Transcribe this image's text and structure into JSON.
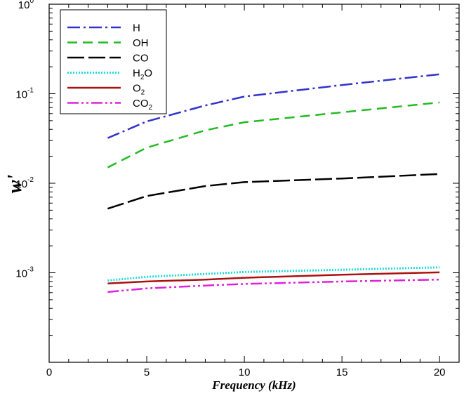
{
  "chart_data": {
    "type": "line",
    "title": "",
    "xlabel": "Frequency (kHz)",
    "ylabel": "w'",
    "xscale": "linear",
    "yscale": "log",
    "xlim": [
      0,
      21
    ],
    "ylim": [
      0.0001,
      1
    ],
    "xticks": [
      {
        "value": 0,
        "label": "0"
      },
      {
        "value": 5,
        "label": "5"
      },
      {
        "value": 10,
        "label": "10"
      },
      {
        "value": 15,
        "label": "15"
      },
      {
        "value": 20,
        "label": "20"
      }
    ],
    "yticks": [
      {
        "value": 1,
        "base": "10",
        "exp": "0"
      },
      {
        "value": 0.1,
        "base": "10",
        "exp": "-1"
      },
      {
        "value": 0.01,
        "base": "10",
        "exp": "-2"
      },
      {
        "value": 0.001,
        "base": "10",
        "exp": "-3"
      }
    ],
    "legend_position": "top-left",
    "series": [
      {
        "name": "H",
        "label_main": "H",
        "label_sub": "",
        "label_tail": "",
        "color": "#3333cc",
        "dash": "18,5,3,5",
        "x": [
          3,
          5,
          8,
          10,
          15,
          20
        ],
        "y": [
          0.032,
          0.049,
          0.074,
          0.093,
          0.125,
          0.165
        ]
      },
      {
        "name": "OH",
        "label_main": "OH",
        "label_sub": "",
        "label_tail": "",
        "color": "#22bb22",
        "dash": "14,8",
        "x": [
          3,
          5,
          8,
          10,
          15,
          20
        ],
        "y": [
          0.015,
          0.025,
          0.039,
          0.048,
          0.062,
          0.08
        ]
      },
      {
        "name": "CO",
        "label_main": "CO",
        "label_sub": "",
        "label_tail": "",
        "color": "#000000",
        "dash": "24,6",
        "x": [
          3,
          5,
          8,
          10,
          15,
          20
        ],
        "y": [
          0.0052,
          0.0072,
          0.0093,
          0.0103,
          0.0113,
          0.0127
        ]
      },
      {
        "name": "H2O",
        "label_main": "H",
        "label_sub": "2",
        "label_tail": "O",
        "color": "#22dddd",
        "dash": "2,2",
        "x": [
          3,
          5,
          8,
          10,
          15,
          20
        ],
        "y": [
          0.00082,
          0.0009,
          0.00097,
          0.00102,
          0.00108,
          0.00115
        ]
      },
      {
        "name": "O2",
        "label_main": "O",
        "label_sub": "2",
        "label_tail": "",
        "color": "#aa1111",
        "dash": "",
        "x": [
          3,
          5,
          8,
          10,
          15,
          20
        ],
        "y": [
          0.00076,
          0.0008,
          0.00084,
          0.00088,
          0.00095,
          0.00101
        ]
      },
      {
        "name": "CO2",
        "label_main": "CO",
        "label_sub": "2",
        "label_tail": "",
        "color": "#dd22dd",
        "dash": "16,4,3,4,3,4",
        "x": [
          3,
          5,
          8,
          10,
          15,
          20
        ],
        "y": [
          0.00061,
          0.00067,
          0.00072,
          0.00075,
          0.0008,
          0.00084
        ]
      }
    ]
  }
}
